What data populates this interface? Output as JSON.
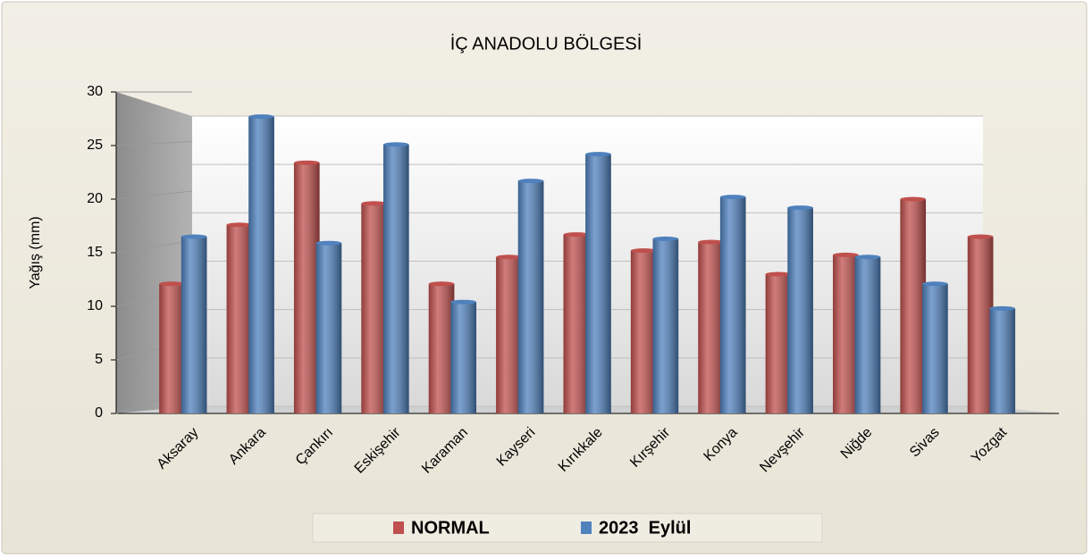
{
  "chart_data": {
    "type": "bar",
    "title": "İÇ ANADOLU BÖLGESİ",
    "y_label": "Yağış (mm)",
    "categories": [
      "Aksaray",
      "Ankara",
      "Çankırı",
      "Eskişehir",
      "Karaman",
      "Kayseri",
      "Kırıkkale",
      "Kırşehir",
      "Konya",
      "Nevşehir",
      "Niğde",
      "Sivas",
      "Yozgat"
    ],
    "series": [
      {
        "name": "NORMAL",
        "color": "#c0504d",
        "values": [
          12.1,
          17.6,
          23.4,
          19.6,
          12.1,
          14.6,
          16.7,
          15.2,
          16.0,
          13.0,
          14.8,
          20.0,
          16.5
        ]
      },
      {
        "name": "2023  Eylül",
        "color": "#4f81bd",
        "values": [
          16.5,
          27.7,
          15.9,
          25.1,
          10.4,
          21.7,
          24.2,
          16.3,
          20.2,
          19.2,
          14.6,
          12.1,
          9.8
        ]
      }
    ],
    "ylim": [
      0,
      30
    ],
    "yticks": [
      0,
      5,
      10,
      15,
      20,
      25,
      30
    ],
    "grid": true,
    "legend": "bottom"
  }
}
